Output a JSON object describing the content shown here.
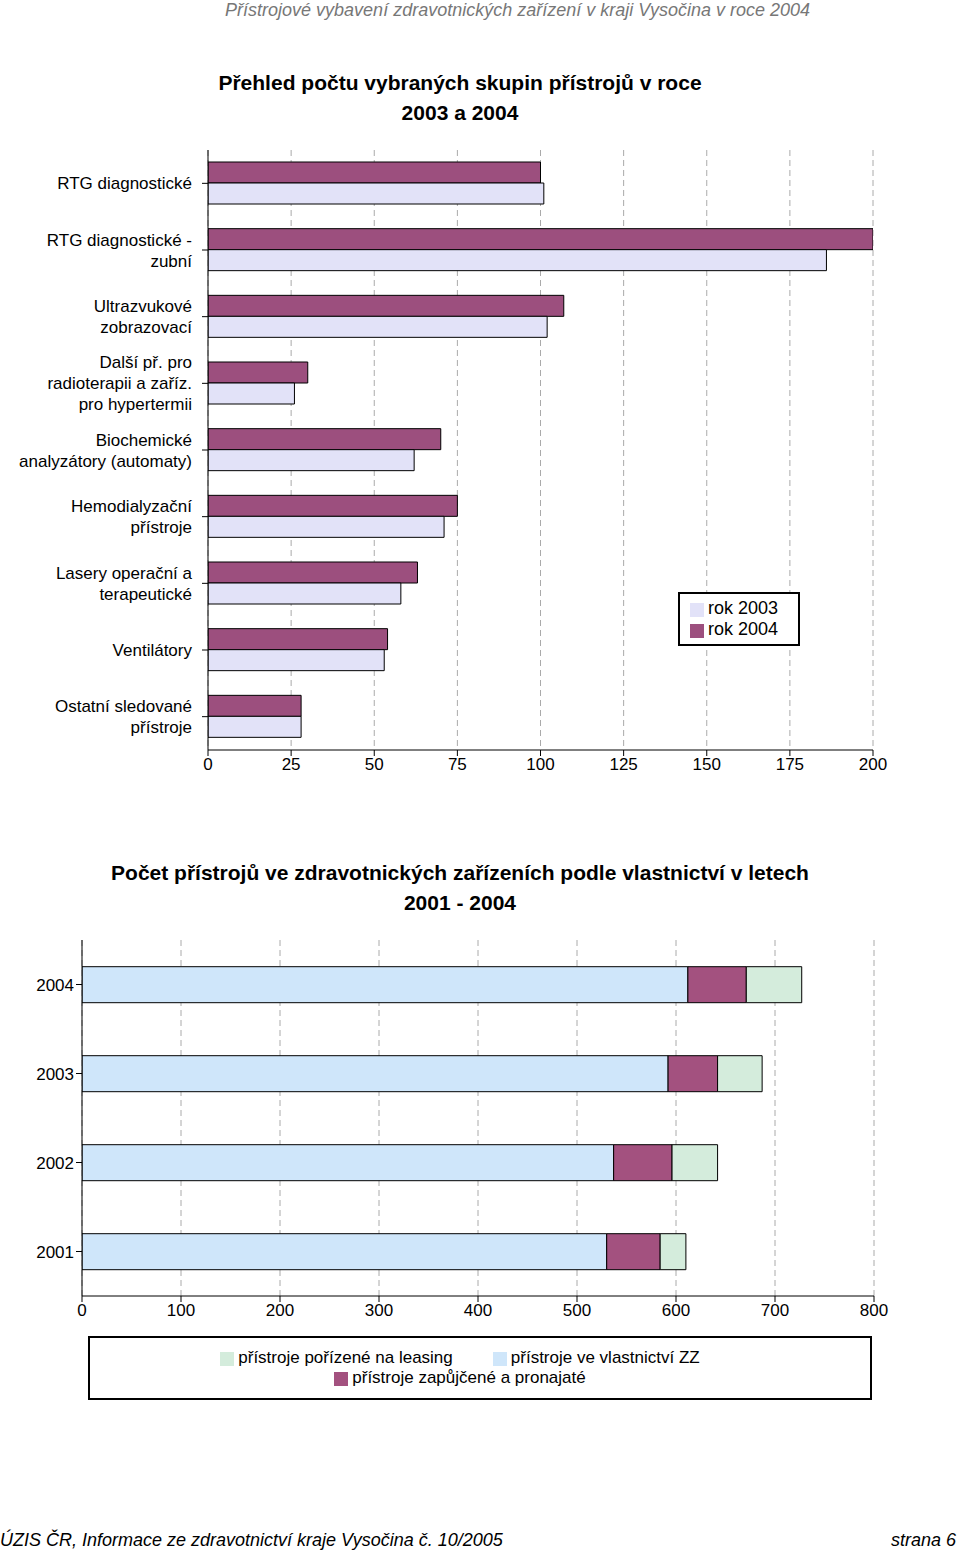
{
  "header": "Přístrojové vybavení zdravotnických zařízení v kraji Vysočina v roce 2004",
  "footer": {
    "left": "ÚZIS ČR, Informace ze zdravotnictví kraje Vysočina č. 10/2005",
    "right": "strana 6"
  },
  "chart_data": [
    {
      "type": "bar",
      "orientation": "horizontal",
      "title": "Přehled počtu vybraných skupin přístrojů v roce 2003 a 2004",
      "categories": [
        "RTG diagnostické",
        "RTG diagnostické - zubní",
        "Ultrazvukové zobrazovací",
        "Další př. pro radioterapii a zaříz. pro hypertermii",
        "Biochemické analyzátory (automaty)",
        "Hemodialyzační přístroje",
        "Lasery operační a terapeutické",
        "Ventilátory",
        "Ostatní sledované přístroje"
      ],
      "series": [
        {
          "name": "rok 2004",
          "color": "#9c4f7e",
          "values": [
            100,
            200,
            107,
            30,
            70,
            75,
            63,
            54,
            28
          ]
        },
        {
          "name": "rok 2003",
          "color": "#e2e2f8",
          "values": [
            101,
            186,
            102,
            26,
            62,
            71,
            58,
            53,
            28
          ]
        }
      ],
      "xlim": [
        0,
        200
      ],
      "xticks": [
        0,
        25,
        50,
        75,
        100,
        125,
        150,
        175,
        200
      ],
      "grid": true,
      "legend": "lower right"
    },
    {
      "type": "bar",
      "orientation": "horizontal",
      "stacked": true,
      "title": "Počet přístrojů ve zdravotnických zařízeních podle vlastnictví v letech 2001 - 2004",
      "categories": [
        "2004",
        "2003",
        "2002",
        "2001"
      ],
      "series": [
        {
          "name": "přístroje ve vlastnictví ZZ",
          "color": "#cfe6fa",
          "values": [
            612,
            592,
            537,
            530
          ]
        },
        {
          "name": "přístroje zapůjčené a pronajaté",
          "color": "#a3517f",
          "values": [
            59,
            50,
            59,
            54
          ]
        },
        {
          "name": "přístroje pořízené na leasing",
          "color": "#d4ecdc",
          "values": [
            56,
            45,
            46,
            26
          ]
        }
      ],
      "xlim": [
        0,
        800
      ],
      "xticks": [
        0,
        100,
        200,
        300,
        400,
        500,
        600,
        700,
        800
      ],
      "grid": true,
      "legend": "bottom"
    }
  ]
}
